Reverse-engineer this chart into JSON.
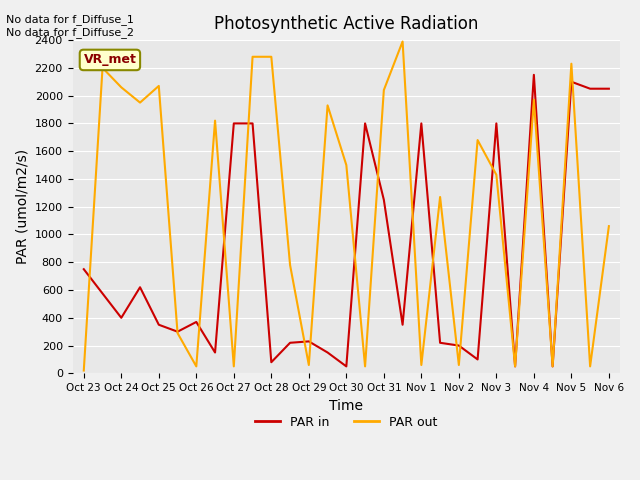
{
  "title": "Photosynthetic Active Radiation",
  "xlabel": "Time",
  "ylabel": "PAR (umol/m2/s)",
  "annotation_text": "No data for f_Diffuse_1\nNo data for f_Diffuse_2",
  "box_label": "VR_met",
  "legend_labels": [
    "PAR in",
    "PAR out"
  ],
  "par_in_color": "#cc0000",
  "par_out_color": "#ffaa00",
  "background_color": "#e8e8e8",
  "fig_background_color": "#f0f0f0",
  "ylim": [
    0,
    2400
  ],
  "x_tick_labels": [
    "Oct 23",
    "Oct 24",
    "Oct 25",
    "Oct 26",
    "Oct 27",
    "Oct 28",
    "Oct 29",
    "Oct 30",
    "Oct 31",
    "Nov 1",
    "Nov 2",
    "Nov 3",
    "Nov 4",
    "Nov 5",
    "Nov 6"
  ],
  "par_in_x": [
    0,
    1,
    1.5,
    2,
    2.5,
    3,
    3.5,
    4,
    4.5,
    5,
    5.5,
    6,
    6.5,
    7,
    7.5,
    8,
    8.5,
    9,
    9.5,
    10,
    10.5,
    11,
    11.5,
    12,
    12.5,
    13,
    13.5,
    14
  ],
  "par_in_y": [
    750,
    400,
    620,
    350,
    300,
    370,
    150,
    1800,
    1800,
    80,
    220,
    230,
    150,
    50,
    1800,
    1250,
    350,
    1800,
    220,
    200,
    100,
    1800,
    50,
    2150,
    50,
    2100,
    2050,
    2050
  ],
  "par_out_x": [
    0,
    0.5,
    1,
    1.5,
    2,
    2.5,
    3,
    3.5,
    4,
    4.5,
    5,
    5.5,
    6,
    6.5,
    7,
    7.5,
    8,
    8.5,
    9,
    9.5,
    10,
    10.5,
    11,
    11.5,
    12,
    12.5,
    13,
    13.5,
    14
  ],
  "par_out_y": [
    20,
    2200,
    2060,
    1950,
    2070,
    290,
    50,
    1820,
    50,
    2280,
    2280,
    780,
    60,
    1930,
    1500,
    50,
    2040,
    2390,
    60,
    1270,
    60,
    1680,
    1430,
    50,
    1970,
    50,
    2230,
    50,
    1060
  ]
}
